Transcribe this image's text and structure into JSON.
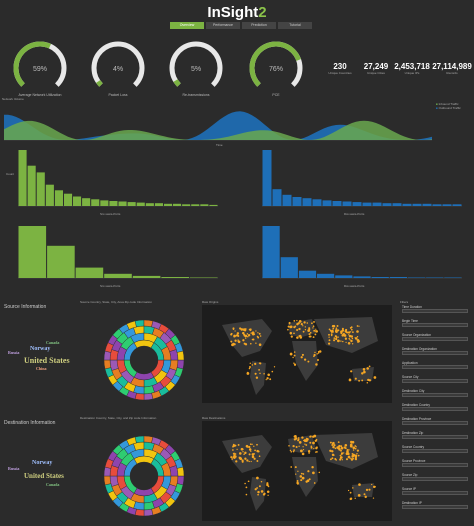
{
  "app": {
    "title_main": "InSight",
    "title_accent": "2"
  },
  "tabs": [
    "Overview",
    "Performance",
    "Prediction",
    "Tutorial"
  ],
  "active_tab": 0,
  "gauges": [
    {
      "value": "59%",
      "label": "Average Network Utilization",
      "fraction": 0.59,
      "color": "#7cb342"
    },
    {
      "value": "4%",
      "label": "Packet Loss",
      "fraction": 0.04,
      "color": "#7cb342"
    },
    {
      "value": "5%",
      "label": "Re-transmissions",
      "fraction": 0.05,
      "color": "#7cb342"
    },
    {
      "value": "76%",
      "label": "PCE",
      "fraction": 0.76,
      "color": "#7cb342"
    }
  ],
  "stats": [
    {
      "value": "230",
      "label": "Unique Countries"
    },
    {
      "value": "27,249",
      "label": "Unique Cities"
    },
    {
      "value": "2,453,718",
      "label": "Unique IPs"
    },
    {
      "value": "27,114,989",
      "label": "Records"
    }
  ],
  "network_volume": {
    "title": "Network Volume",
    "legend": [
      "Inbound Traffic",
      "Outbound Traffic"
    ],
    "xlabel": "Time"
  },
  "bar_charts": {
    "src_axis": "Src-xaxis-Ports",
    "dst_axis": "Dst-xaxis-Ports",
    "ylabel": "Count",
    "top_left": [
      100,
      72,
      60,
      38,
      28,
      22,
      17,
      14,
      12,
      10,
      9,
      8,
      7,
      6,
      5,
      5,
      4,
      4,
      3,
      3,
      3,
      2
    ],
    "top_right": [
      100,
      30,
      20,
      16,
      14,
      12,
      10,
      9,
      8,
      7,
      6,
      6,
      5,
      5,
      4,
      4,
      4,
      3,
      3,
      3
    ],
    "bottom_left": [
      100,
      62,
      20,
      8,
      4,
      2,
      1
    ],
    "bottom_right": [
      100,
      40,
      14,
      8,
      5,
      3,
      2,
      2,
      1,
      1,
      1
    ]
  },
  "sections": {
    "source_title": "Source Information",
    "dest_title": "Destination Information",
    "src_sunburst_title": "Source Country, State, City, Area Zip code Information",
    "dst_sunburst_title": "Destination Country, State, City, and Zip code Information",
    "src_map_title": "Raw Origins",
    "dst_map_title": "Raw Destinations"
  },
  "src_words": [
    {
      "text": "United States",
      "color": "#d0d080"
    },
    {
      "text": "Norway",
      "color": "#a0c0ff"
    },
    {
      "text": "Russia",
      "color": "#c0a0e0"
    },
    {
      "text": "Canada",
      "color": "#80c080"
    },
    {
      "text": "China",
      "color": "#f0a080"
    }
  ],
  "dst_words": [
    {
      "text": "United States",
      "color": "#d0d080"
    },
    {
      "text": "Norway",
      "color": "#a0c0ff"
    },
    {
      "text": "Russia",
      "color": "#c0a0e0"
    },
    {
      "text": "Canada",
      "color": "#80c080"
    }
  ],
  "filters": {
    "title": "Filters",
    "items": [
      "Time Duration",
      "Begin Time",
      "Source Organization",
      "Destination Organization",
      "Application",
      "Source City",
      "Destination City",
      "Destination Country",
      "Destination Province",
      "Destination Zip",
      "Source Country",
      "Source Province",
      "Source Zip",
      "Source IP",
      "Destination IP"
    ]
  },
  "colors": {
    "green": "#7cb342",
    "blue": "#1e6fb8",
    "bg": "#2b2b2b",
    "panel": "#1f1f1f",
    "orange": "#f5a623"
  }
}
